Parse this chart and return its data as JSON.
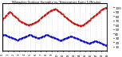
{
  "title": "Milwaukee Outdoor Humidity vs. Temperature Every 5 Minutes",
  "background_color": "#ffffff",
  "grid_color": "#cccccc",
  "red_color": "#cc0000",
  "blue_color": "#0000cc",
  "y_left_label": "",
  "y_right_label": "",
  "ylim": [
    0,
    110
  ],
  "xlim": [
    0,
    100
  ],
  "red_y": [
    72,
    74,
    76,
    80,
    82,
    85,
    88,
    90,
    88,
    85,
    82,
    80,
    78,
    76,
    75,
    72,
    70,
    68,
    66,
    65,
    64,
    63,
    62,
    61,
    60,
    59,
    60,
    61,
    62,
    63,
    64,
    65,
    66,
    68,
    70,
    72,
    74,
    76,
    78,
    80,
    82,
    84,
    86,
    88,
    90,
    91,
    92,
    93,
    94,
    95,
    96,
    95,
    93,
    91,
    89,
    87,
    85,
    83,
    81,
    79,
    77,
    75,
    73,
    71,
    69,
    67,
    65,
    64,
    63,
    62,
    61,
    60,
    59,
    58,
    57,
    58,
    59,
    60,
    62,
    64,
    66,
    68,
    70,
    72,
    74,
    76,
    78,
    80,
    82,
    84,
    86,
    88,
    90,
    92,
    94,
    96,
    97,
    98,
    99,
    100
  ],
  "blue_y": [
    35,
    36,
    37,
    36,
    35,
    34,
    33,
    32,
    31,
    30,
    29,
    28,
    27,
    26,
    25,
    26,
    27,
    28,
    29,
    30,
    31,
    32,
    33,
    34,
    35,
    36,
    37,
    36,
    35,
    34,
    33,
    32,
    31,
    30,
    29,
    30,
    31,
    32,
    33,
    34,
    35,
    36,
    37,
    36,
    35,
    34,
    33,
    32,
    31,
    30,
    29,
    28,
    27,
    26,
    25,
    24,
    25,
    26,
    27,
    28,
    29,
    30,
    31,
    32,
    33,
    34,
    33,
    32,
    31,
    30,
    29,
    28,
    27,
    26,
    25,
    24,
    23,
    22,
    21,
    20,
    19,
    18,
    17,
    18,
    19,
    20,
    21,
    22,
    23,
    22,
    21,
    20,
    19,
    18,
    17,
    16,
    15,
    14,
    13,
    12
  ],
  "right_yticks": [
    100,
    90,
    80,
    70,
    60,
    50,
    40,
    30,
    20,
    10
  ],
  "right_yticklabels": [
    "100",
    "90",
    "80",
    "70",
    "60",
    "50",
    "40",
    "30",
    "20",
    "10"
  ]
}
